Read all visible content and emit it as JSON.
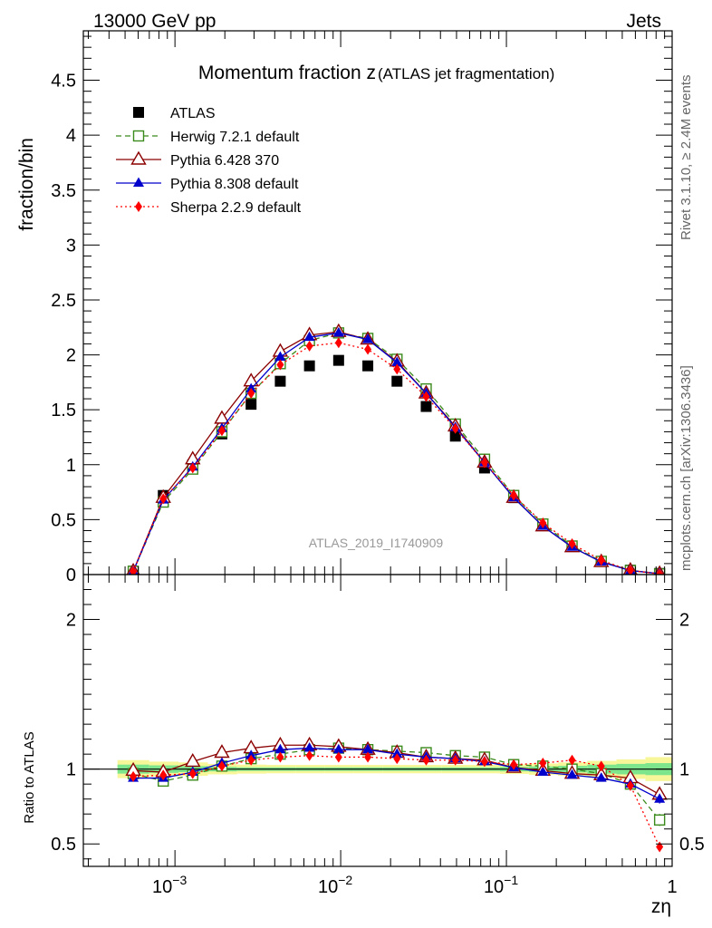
{
  "header": {
    "energy_label": "13000 GeV pp",
    "process_label": "Jets",
    "rivet_label": "Rivet 3.1.10, ≥ 2.4M events",
    "mcplots_label": "mcplots.cern.ch [arXiv:1306.3436]",
    "analysis_label": "ATLAS_2019_I1740909"
  },
  "chart_data": [
    {
      "type": "scatter",
      "title_main": "Momentum fraction z",
      "title_sub": "(ATLAS jet fragmentation)",
      "ylabel": "fraction/bin",
      "xscale": "log",
      "xlim": [
        0.00028,
        1.0
      ],
      "ylim": [
        0,
        4.95
      ],
      "yticks": [
        0,
        0.5,
        1,
        1.5,
        2,
        2.5,
        3,
        3.5,
        4,
        4.5
      ],
      "ytick_labels": [
        "0",
        "0.5",
        "1",
        "1.5",
        "2",
        "2.5",
        "3",
        "3.5",
        "4",
        "4.5"
      ],
      "legend_position": "top-left",
      "x": [
        0.00056,
        0.00085,
        0.00128,
        0.00192,
        0.00288,
        0.00432,
        0.00648,
        0.00972,
        0.01458,
        0.02187,
        0.0328,
        0.0492,
        0.0738,
        0.1107,
        0.166,
        0.249,
        0.3735,
        0.56,
        0.84
      ],
      "series": [
        {
          "name": "ATLAS",
          "color": "#000000",
          "marker": "square-filled",
          "line": "none",
          "values": [
            0.03,
            0.72,
            1.0,
            1.28,
            1.55,
            1.76,
            1.9,
            1.95,
            1.9,
            1.76,
            1.53,
            1.26,
            0.97,
            0.7,
            0.45,
            0.26,
            0.12,
            0.04,
            0.01
          ]
        },
        {
          "name": "Herwig 7.2.1 default",
          "color": "#3a8a1c",
          "marker": "square-open",
          "line": "dashed",
          "values": [
            0.03,
            0.66,
            0.96,
            1.3,
            1.65,
            1.92,
            2.13,
            2.2,
            2.15,
            1.96,
            1.69,
            1.37,
            1.05,
            0.72,
            0.46,
            0.26,
            0.12,
            0.037,
            0.006
          ]
        },
        {
          "name": "Pythia 6.428 370",
          "color": "#8b0000",
          "marker": "triangle-open",
          "line": "solid",
          "values": [
            0.03,
            0.7,
            1.05,
            1.42,
            1.76,
            2.03,
            2.18,
            2.21,
            2.14,
            1.94,
            1.65,
            1.35,
            1.02,
            0.7,
            0.44,
            0.25,
            0.115,
            0.038,
            0.008
          ]
        },
        {
          "name": "Pythia 8.308 default",
          "color": "#0000cc",
          "marker": "triangle-filled",
          "line": "solid",
          "values": [
            0.028,
            0.68,
            0.98,
            1.33,
            1.69,
            1.98,
            2.16,
            2.2,
            2.14,
            1.93,
            1.65,
            1.34,
            1.02,
            0.7,
            0.44,
            0.25,
            0.115,
            0.036,
            0.008
          ]
        },
        {
          "name": "Sherpa 2.2.9 default",
          "color": "#ff0000",
          "marker": "diamond-filled",
          "line": "dotted",
          "values": [
            0.028,
            0.69,
            0.97,
            1.31,
            1.65,
            1.91,
            2.08,
            2.11,
            2.05,
            1.87,
            1.62,
            1.33,
            1.02,
            0.72,
            0.47,
            0.28,
            0.13,
            0.037,
            0.005
          ]
        }
      ]
    },
    {
      "type": "scatter",
      "ylabel": "Ratio to ATLAS",
      "xlabel": "zη",
      "xscale": "log",
      "xlim": [
        0.00028,
        1.0
      ],
      "ylim": [
        0.35,
        2.3
      ],
      "yticks": [
        0.5,
        1,
        2
      ],
      "ytick_labels": [
        "0.5",
        "1",
        "2"
      ],
      "xticks": [
        0.001,
        0.01,
        0.1,
        1
      ],
      "xtick_labels": [
        [
          "10",
          "−3"
        ],
        [
          "10",
          "−2"
        ],
        [
          "10",
          "−1"
        ],
        [
          "1",
          ""
        ]
      ],
      "band": {
        "x_edges": [
          0.00045,
          0.0007,
          0.00105,
          0.00158,
          0.00237,
          0.00356,
          0.00534,
          0.008,
          0.012,
          0.018,
          0.027,
          0.0405,
          0.0608,
          0.0911,
          0.1367,
          0.205,
          0.3075,
          0.4613,
          0.69,
          1.0
        ],
        "inner_half_width": [
          0.03,
          0.025,
          0.02,
          0.015,
          0.012,
          0.012,
          0.012,
          0.012,
          0.012,
          0.012,
          0.012,
          0.012,
          0.012,
          0.015,
          0.018,
          0.022,
          0.03,
          0.035,
          0.04
        ],
        "outer_half_width": [
          0.06,
          0.05,
          0.045,
          0.035,
          0.03,
          0.028,
          0.028,
          0.028,
          0.028,
          0.028,
          0.028,
          0.028,
          0.028,
          0.032,
          0.038,
          0.045,
          0.055,
          0.065,
          0.08
        ],
        "inner_color": "#7de58b",
        "outer_color": "#f7f79a"
      },
      "series": [
        {
          "name": "Herwig 7.2.1 default",
          "values": [
            0.97,
            0.92,
            0.96,
            1.02,
            1.07,
            1.1,
            1.13,
            1.14,
            1.13,
            1.12,
            1.11,
            1.09,
            1.08,
            1.03,
            1.02,
            1.0,
            0.97,
            0.9,
            0.66
          ],
          "errors": [
            0.02,
            0.01,
            0.01,
            0.01,
            0.01,
            0.01,
            0.01,
            0.01,
            0.01,
            0.01,
            0.01,
            0.01,
            0.01,
            0.01,
            0.01,
            0.01,
            0.01,
            0.02,
            0.04
          ]
        },
        {
          "name": "Pythia 6.428 370",
          "values": [
            0.99,
            0.98,
            1.05,
            1.11,
            1.14,
            1.16,
            1.16,
            1.15,
            1.13,
            1.11,
            1.08,
            1.07,
            1.06,
            1.01,
            0.99,
            0.97,
            0.96,
            0.94,
            0.83
          ],
          "errors": [
            0.02,
            0.01,
            0.01,
            0.01,
            0.01,
            0.01,
            0.01,
            0.01,
            0.01,
            0.01,
            0.01,
            0.01,
            0.01,
            0.01,
            0.01,
            0.01,
            0.01,
            0.02,
            0.03
          ]
        },
        {
          "name": "Pythia 8.308 default",
          "values": [
            0.94,
            0.94,
            0.98,
            1.04,
            1.09,
            1.13,
            1.14,
            1.13,
            1.13,
            1.1,
            1.08,
            1.07,
            1.05,
            1.01,
            0.98,
            0.96,
            0.94,
            0.9,
            0.8
          ],
          "errors": [
            0.02,
            0.01,
            0.01,
            0.01,
            0.01,
            0.01,
            0.01,
            0.01,
            0.01,
            0.01,
            0.01,
            0.01,
            0.01,
            0.01,
            0.01,
            0.01,
            0.01,
            0.02,
            0.03
          ]
        },
        {
          "name": "Sherpa 2.2.9 default",
          "values": [
            0.95,
            0.96,
            0.97,
            1.02,
            1.06,
            1.08,
            1.09,
            1.08,
            1.08,
            1.07,
            1.06,
            1.06,
            1.05,
            1.03,
            1.04,
            1.06,
            1.02,
            0.89,
            0.48
          ],
          "errors": [
            0.02,
            0.01,
            0.01,
            0.01,
            0.01,
            0.01,
            0.01,
            0.01,
            0.01,
            0.01,
            0.01,
            0.01,
            0.01,
            0.01,
            0.01,
            0.01,
            0.01,
            0.02,
            0.03
          ]
        }
      ]
    }
  ]
}
